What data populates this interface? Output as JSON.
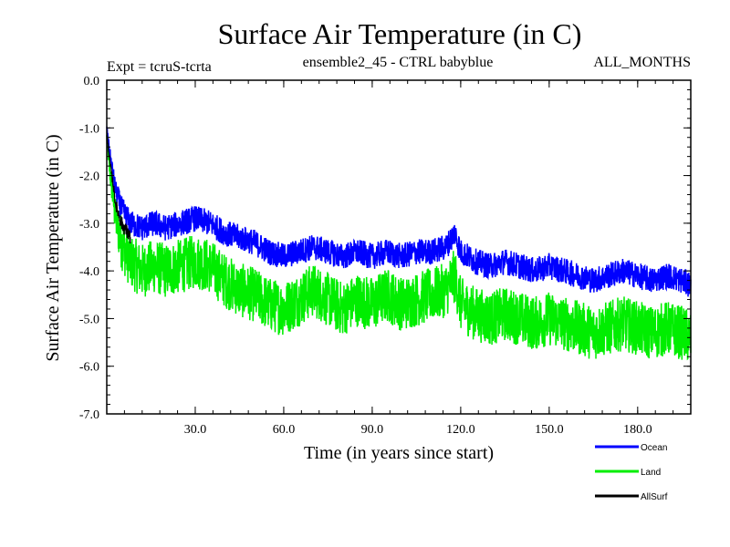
{
  "chart_data": {
    "type": "line",
    "title": "Surface Air Temperature (in C)",
    "subtitle_left": "Expt = tcruS-tcrta",
    "subtitle_center": "ensemble2_45 - CTRL babyblue",
    "subtitle_right": "ALL_MONTHS",
    "xlabel": "Time (in years since start)",
    "ylabel": "Surface Air Temperature (in C)",
    "xlim": [
      0,
      198
    ],
    "ylim": [
      -7.0,
      0.0
    ],
    "x_ticks": [
      30,
      60,
      90,
      120,
      150,
      180
    ],
    "x_tick_labels": [
      "30.0",
      "60.0",
      "90.0",
      "120.0",
      "150.0",
      "180.0"
    ],
    "y_ticks": [
      0,
      -1,
      -2,
      -3,
      -4,
      -5,
      -6,
      -7
    ],
    "y_tick_labels": [
      "0.0",
      "-1.0",
      "-2.0",
      "-3.0",
      "-4.0",
      "-5.0",
      "-6.0",
      "-7.0"
    ],
    "grid": false,
    "legend_position": "bottom-right",
    "series": [
      {
        "name": "Ocean",
        "color": "#0000ff",
        "x": [
          0,
          1,
          2,
          3,
          5,
          8,
          12,
          16,
          20,
          25,
          30,
          35,
          40,
          45,
          50,
          55,
          60,
          65,
          70,
          75,
          80,
          85,
          90,
          95,
          100,
          105,
          110,
          115,
          118,
          120,
          125,
          130,
          135,
          140,
          145,
          150,
          155,
          160,
          165,
          170,
          175,
          180,
          185,
          190,
          195,
          198
        ],
        "values": [
          -1.0,
          -1.5,
          -1.9,
          -2.3,
          -2.7,
          -3.0,
          -3.1,
          -3.0,
          -3.1,
          -3.0,
          -2.9,
          -3.0,
          -3.2,
          -3.3,
          -3.4,
          -3.6,
          -3.7,
          -3.6,
          -3.5,
          -3.6,
          -3.7,
          -3.6,
          -3.7,
          -3.6,
          -3.7,
          -3.6,
          -3.6,
          -3.5,
          -3.2,
          -3.6,
          -3.8,
          -3.9,
          -3.8,
          -3.9,
          -4.0,
          -3.9,
          -4.0,
          -4.1,
          -4.2,
          -4.1,
          -4.0,
          -4.1,
          -4.2,
          -4.1,
          -4.2,
          -4.3
        ]
      },
      {
        "name": "Land",
        "color": "#00ee00",
        "x": [
          0,
          1,
          2,
          3,
          5,
          8,
          12,
          16,
          20,
          25,
          30,
          35,
          40,
          45,
          50,
          55,
          60,
          65,
          70,
          75,
          80,
          85,
          90,
          95,
          100,
          105,
          110,
          115,
          118,
          120,
          125,
          130,
          135,
          140,
          145,
          150,
          155,
          160,
          165,
          170,
          175,
          180,
          185,
          190,
          195,
          198
        ],
        "values": [
          -1.2,
          -1.9,
          -2.4,
          -2.9,
          -3.4,
          -3.8,
          -4.0,
          -3.9,
          -4.0,
          -3.9,
          -3.8,
          -3.9,
          -4.2,
          -4.4,
          -4.5,
          -4.7,
          -4.8,
          -4.6,
          -4.4,
          -4.6,
          -4.8,
          -4.6,
          -4.7,
          -4.5,
          -4.7,
          -4.6,
          -4.5,
          -4.4,
          -4.1,
          -4.7,
          -4.9,
          -5.0,
          -4.9,
          -5.0,
          -5.1,
          -5.0,
          -5.1,
          -5.2,
          -5.3,
          -5.2,
          -5.1,
          -5.2,
          -5.3,
          -5.2,
          -5.3,
          -5.4
        ]
      },
      {
        "name": "AllSurf",
        "color": "#000000",
        "x": [
          0,
          1,
          2,
          3,
          5,
          8
        ],
        "values": [
          -1.1,
          -1.7,
          -2.1,
          -2.6,
          -3.0,
          -3.3
        ]
      }
    ]
  }
}
